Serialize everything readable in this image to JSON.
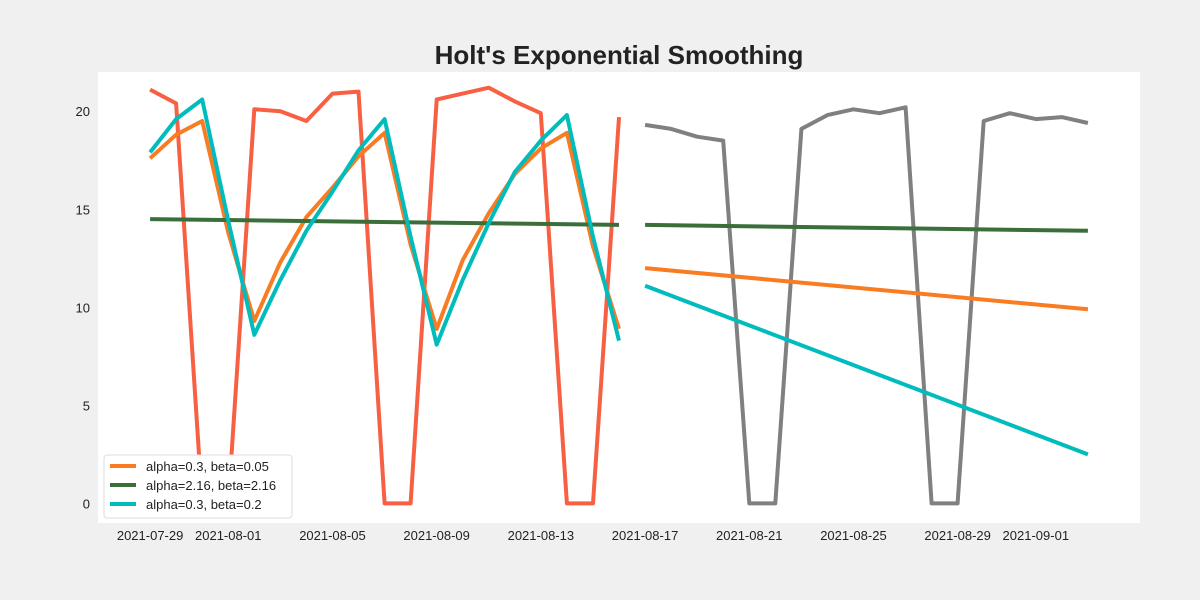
{
  "chart_data": {
    "type": "line",
    "title": "Holt's Exponential Smoothing",
    "xlabel": "",
    "ylabel": "",
    "grid": false,
    "legend_position": "bottom-left",
    "xlim": [
      "2021-07-27",
      "2021-09-05"
    ],
    "ylim": [
      -1,
      22
    ],
    "x_ticks": [
      "2021-07-29",
      "2021-08-01",
      "2021-08-05",
      "2021-08-09",
      "2021-08-13",
      "2021-08-17",
      "2021-08-21",
      "2021-08-25",
      "2021-08-29",
      "2021-09-01"
    ],
    "y_ticks": [
      0,
      5,
      10,
      15,
      20
    ],
    "legend": [
      {
        "label": "alpha=0.3, beta=0.05",
        "color": "#f97b22"
      },
      {
        "label": "alpha=2.16, beta=2.16",
        "color": "#3a6e3a"
      },
      {
        "label": "alpha=0.3, beta=0.2",
        "color": "#00bcbc"
      }
    ],
    "series": [
      {
        "color": "#f86044",
        "x": [
          "2021-07-29",
          "2021-07-30",
          "2021-07-31",
          "2021-08-01",
          "2021-08-02",
          "2021-08-03",
          "2021-08-04",
          "2021-08-05",
          "2021-08-06",
          "2021-08-07",
          "2021-08-08",
          "2021-08-09",
          "2021-08-10",
          "2021-08-11",
          "2021-08-12",
          "2021-08-13",
          "2021-08-14",
          "2021-08-15",
          "2021-08-16"
        ],
        "y": [
          21.1,
          20.4,
          0,
          0,
          20.1,
          20.0,
          19.5,
          20.9,
          21.0,
          0,
          0,
          20.6,
          20.9,
          21.2,
          20.5,
          19.9,
          0,
          0,
          19.7
        ]
      },
      {
        "color": "#f97b22",
        "x": [
          "2021-07-29",
          "2021-07-30",
          "2021-07-31",
          "2021-08-01",
          "2021-08-02",
          "2021-08-03",
          "2021-08-04",
          "2021-08-05",
          "2021-08-06",
          "2021-08-07",
          "2021-08-08",
          "2021-08-09",
          "2021-08-10",
          "2021-08-11",
          "2021-08-12",
          "2021-08-13",
          "2021-08-14",
          "2021-08-15",
          "2021-08-16"
        ],
        "y": [
          17.6,
          18.8,
          19.5,
          13.8,
          9.3,
          12.3,
          14.6,
          16.1,
          17.7,
          18.9,
          13.2,
          8.9,
          12.4,
          14.8,
          16.8,
          18.1,
          18.9,
          13.1,
          8.9
        ]
      },
      {
        "color": "#3a6e3a",
        "x": [
          "2021-07-29",
          "2021-08-16"
        ],
        "y": [
          14.5,
          14.2
        ]
      },
      {
        "color": "#00bcbc",
        "x": [
          "2021-07-29",
          "2021-07-30",
          "2021-07-31",
          "2021-08-01",
          "2021-08-02",
          "2021-08-03",
          "2021-08-04",
          "2021-08-05",
          "2021-08-06",
          "2021-08-07",
          "2021-08-08",
          "2021-08-09",
          "2021-08-10",
          "2021-08-11",
          "2021-08-12",
          "2021-08-13",
          "2021-08-14",
          "2021-08-15",
          "2021-08-16"
        ],
        "y": [
          17.9,
          19.6,
          20.6,
          14.4,
          8.6,
          11.4,
          13.9,
          15.9,
          18.0,
          19.6,
          13.6,
          8.1,
          11.4,
          14.3,
          16.9,
          18.5,
          19.8,
          13.6,
          8.3
        ]
      },
      {
        "color": "#808080",
        "x": [
          "2021-08-17",
          "2021-08-18",
          "2021-08-19",
          "2021-08-20",
          "2021-08-21",
          "2021-08-22",
          "2021-08-23",
          "2021-08-24",
          "2021-08-25",
          "2021-08-26",
          "2021-08-27",
          "2021-08-28",
          "2021-08-29",
          "2021-08-30",
          "2021-08-31",
          "2021-09-01",
          "2021-09-02",
          "2021-09-03"
        ],
        "y": [
          19.3,
          19.1,
          18.7,
          18.5,
          0,
          0,
          19.1,
          19.8,
          20.1,
          19.9,
          20.2,
          0,
          0,
          19.5,
          19.9,
          19.6,
          19.7,
          19.4
        ]
      },
      {
        "color": "#3a6e3a",
        "x": [
          "2021-08-17",
          "2021-09-03"
        ],
        "y": [
          14.2,
          13.9
        ]
      },
      {
        "color": "#f97b22",
        "x": [
          "2021-08-17",
          "2021-09-03"
        ],
        "y": [
          12.0,
          9.9
        ]
      },
      {
        "color": "#00bcbc",
        "x": [
          "2021-08-17",
          "2021-09-03"
        ],
        "y": [
          11.1,
          2.5
        ]
      }
    ]
  }
}
